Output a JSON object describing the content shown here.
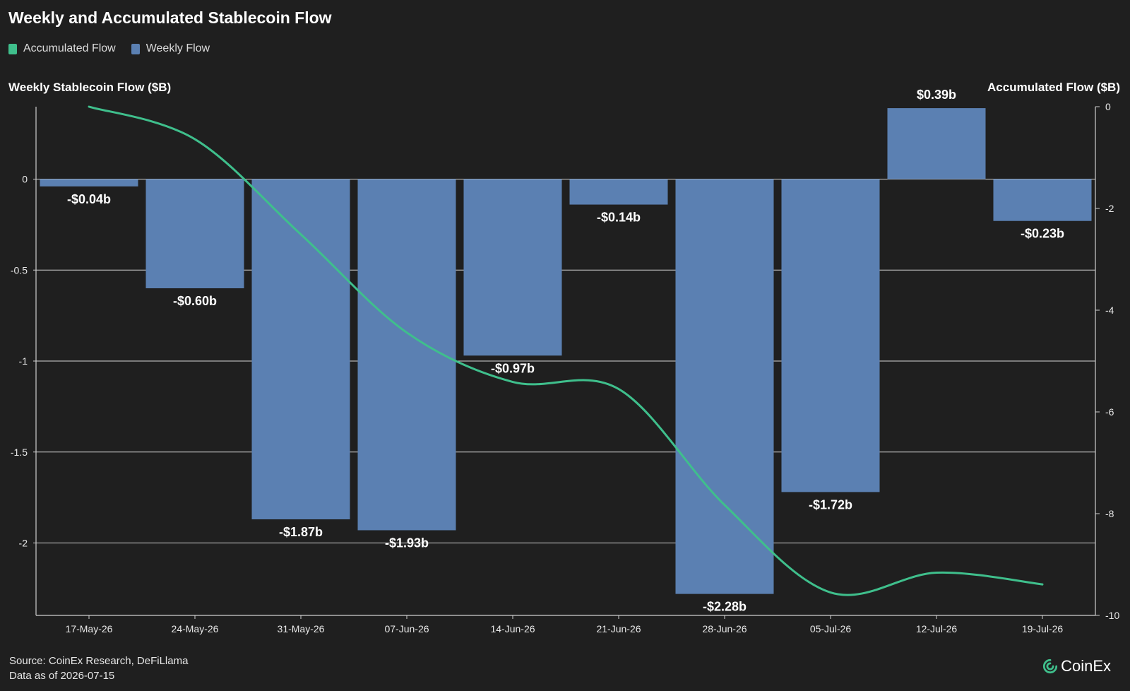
{
  "title": "Weekly and Accumulated Stablecoin Flow",
  "legend": [
    {
      "label": "Accumulated Flow",
      "color": "#3fbf8c"
    },
    {
      "label": "Weekly Flow",
      "color": "#5b80b2"
    }
  ],
  "footer": {
    "source": "Source: CoinEx Research, DeFiLlama",
    "date": "Data as of 2026-07-15"
  },
  "brand": {
    "name": "CoinEx",
    "icon": "coinex-logo-icon"
  },
  "colors": {
    "background": "#1f1f1f",
    "bar": "#5b80b2",
    "line": "#3fbf8c",
    "grid": "#e8e8e8",
    "text": "#ffffff"
  },
  "chart_data": {
    "type": "bar",
    "title": "Weekly and Accumulated Stablecoin Flow",
    "categories": [
      "17-May-26",
      "24-May-26",
      "31-May-26",
      "07-Jun-26",
      "14-Jun-26",
      "21-Jun-26",
      "28-Jun-26",
      "05-Jul-26",
      "12-Jul-26",
      "19-Jul-26"
    ],
    "y_left": {
      "label": "Weekly Stablecoin Flow ($B)",
      "min": -2.4,
      "max": 0.4,
      "ticks": [
        0,
        -0.5,
        -1,
        -1.5,
        -2
      ],
      "tick_labels": [
        "0",
        "-0.5",
        "-1",
        "-1.5",
        "-2"
      ]
    },
    "y_right": {
      "label": "Accumulated Flow ($B)",
      "min": -10,
      "max": 0,
      "ticks": [
        0,
        -2,
        -4,
        -6,
        -8,
        -10
      ],
      "tick_labels": [
        "0",
        "-2",
        "-4",
        "-6",
        "-8",
        "-10"
      ]
    },
    "grid": true,
    "legend_position": "top-left",
    "series": [
      {
        "name": "Weekly Flow",
        "type": "bar",
        "axis": "left",
        "values": [
          -0.04,
          -0.6,
          -1.87,
          -1.93,
          -0.97,
          -0.14,
          -2.28,
          -1.72,
          0.39,
          -0.23
        ],
        "data_labels": [
          "-$0.04b",
          "-$0.60b",
          "-$1.87b",
          "-$1.93b",
          "-$0.97b",
          "-$0.14b",
          "-$2.28b",
          "-$1.72b",
          "$0.39b",
          "-$0.23b"
        ]
      },
      {
        "name": "Accumulated Flow",
        "type": "line",
        "axis": "right",
        "values": [
          -0.04,
          -0.64,
          -2.51,
          -4.44,
          -5.41,
          -5.55,
          -7.83,
          -9.55,
          -9.16,
          -9.39
        ]
      }
    ]
  }
}
